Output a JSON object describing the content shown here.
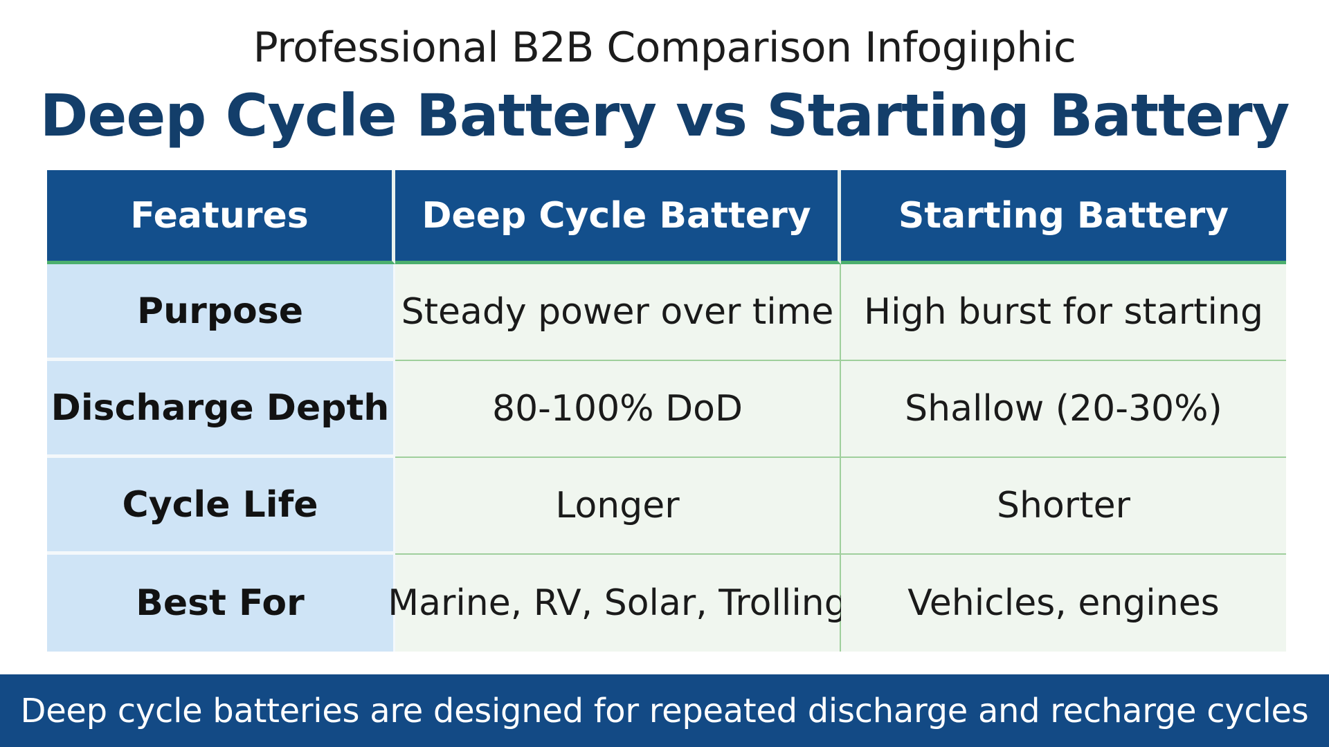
{
  "header": {
    "subtitle": "Professional B2B Comparison Infogiıphic",
    "title": "Deep Cycle Battery vs Starting Battery"
  },
  "table": {
    "columns": [
      "Features",
      "Deep Cycle Battery",
      "Starting Battery"
    ],
    "rows": [
      [
        "Purpose",
        "Steady power over time",
        "High burst for starting"
      ],
      [
        "Discharge Depth",
        "80-100% DoD",
        "Shallow (20-30%)"
      ],
      [
        "Cycle Life",
        "Longer",
        "Shorter"
      ],
      [
        "Best For",
        "Marine, RV, Solar, Trolling",
        "Vehicles, engines"
      ]
    ]
  },
  "footer": {
    "text": "Deep cycle batteries are designed for repeated discharge and recharge cycles"
  },
  "colors": {
    "title": "#133e6a",
    "header_bg": "#134f8c",
    "feature_bg": "#cfe4f6",
    "value_bg": "#f0f6ef",
    "footer_bg": "#134a85",
    "accent_line": "#4caf6e"
  }
}
